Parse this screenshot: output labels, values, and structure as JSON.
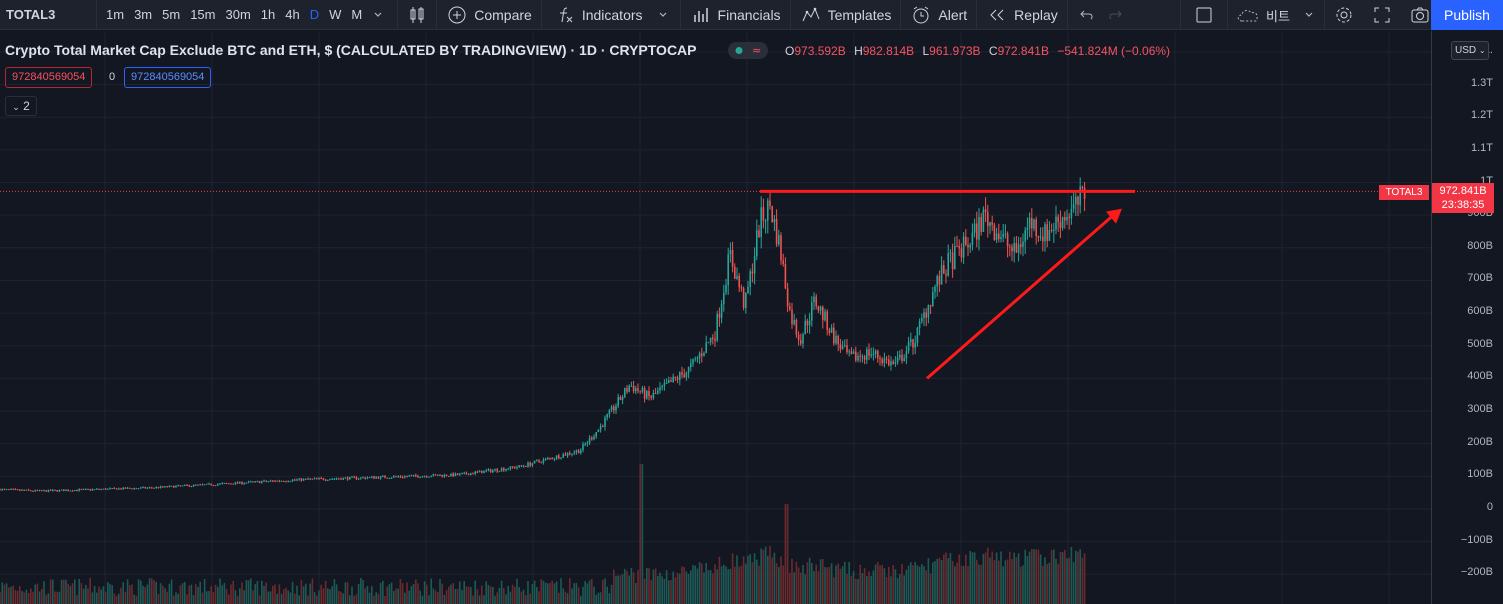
{
  "toolbar": {
    "symbol": "TOTAL3",
    "intervals": [
      "1m",
      "3m",
      "5m",
      "15m",
      "30m",
      "1h",
      "4h",
      "D",
      "W",
      "M"
    ],
    "active_interval": "D",
    "compare": "Compare",
    "indicators": "Indicators",
    "financials": "Financials",
    "templates": "Templates",
    "alert": "Alert",
    "replay": "Replay",
    "layout_name": "비트",
    "publish": "Publish"
  },
  "legend": {
    "title": "Crypto Total Market Cap Exclude BTC and ETH, $ (CALCULATED BY TRADINGVIEW) · 1D · CRYPTOCAP",
    "ohlc": [
      {
        "k": "O",
        "v": "973.592B"
      },
      {
        "k": "H",
        "v": "982.814B"
      },
      {
        "k": "L",
        "v": "961.973B"
      },
      {
        "k": "C",
        "v": "972.841B"
      }
    ],
    "change": "−541.824M (−0.06%)",
    "input_left": "972840569054",
    "input_mid": "0",
    "input_right": "972840569054",
    "collapse_count": "2"
  },
  "price_axis": {
    "currency": "USD",
    "ticks": [
      "1.",
      "1.3T",
      "1.2T",
      "1.1T",
      "1T",
      "900B",
      "800B",
      "700B",
      "600B",
      "500B",
      "400B",
      "300B",
      "200B",
      "100B",
      "0",
      "−100B",
      "−200B"
    ],
    "symbol_tag": "TOTAL3",
    "last_price": "972.841B",
    "countdown": "23:38:35"
  },
  "colors": {
    "background": "#131722",
    "up": "#26a69a",
    "down": "#ef5350",
    "drawing": "#ff1a1a",
    "accent": "#2962ff"
  },
  "drawings": {
    "resistance_level": 972.841,
    "trend_arrow_from": 400,
    "trend_arrow_to": 920
  }
}
